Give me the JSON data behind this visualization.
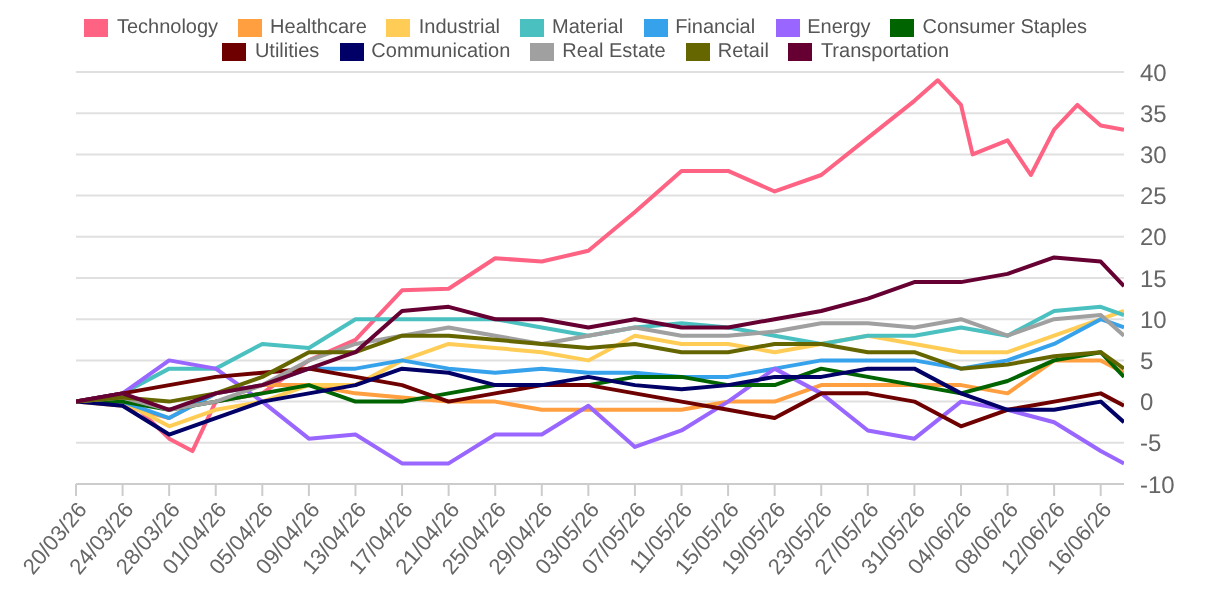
{
  "chart_data": {
    "type": "line",
    "x": [
      "--03-20",
      "--03-24",
      "--03-28",
      "--04-01",
      "--04-05",
      "--04-09",
      "--04-13",
      "--04-17",
      "--04-21",
      "--04-25",
      "--04-29",
      "--05-03",
      "--05-07",
      "--05-11",
      "--05-15",
      "--05-19",
      "--05-23",
      "--05-27",
      "--05-31",
      "--06-04",
      "--06-08",
      "--06-12",
      "--06-16",
      "--06-18"
    ],
    "series": [
      {
        "name": "Technology",
        "color": "#ff6384",
        "x": [
          "--03-20",
          "--03-24",
          "--03-28",
          "--03-30",
          "--04-01",
          "--04-05",
          "--04-09",
          "--04-13",
          "--04-17",
          "--04-21",
          "--04-25",
          "--04-29",
          "--05-03",
          "--05-07",
          "--05-11",
          "--05-15",
          "--05-19",
          "--05-23",
          "--05-27",
          "--05-31",
          "--06-02",
          "--06-04",
          "--06-05",
          "--06-08",
          "--06-10",
          "--06-12",
          "--06-14",
          "--06-16",
          "--06-18"
        ],
        "values": [
          0,
          1,
          -4.5,
          -6,
          0,
          1,
          5,
          7.5,
          13.5,
          13.7,
          17.4,
          17,
          18.3,
          23,
          28,
          28,
          25.5,
          27.5,
          32,
          36.5,
          39,
          36,
          30,
          31.7,
          27.5,
          33,
          36,
          33.5,
          33
        ]
      },
      {
        "name": "Healthcare",
        "color": "#ff9f40",
        "values": [
          0,
          -0.5,
          -2,
          1,
          2,
          2,
          1,
          0.5,
          0,
          0,
          -1,
          -1,
          -1,
          -1,
          0,
          0,
          2,
          2,
          2,
          2,
          1,
          5,
          5,
          3.5
        ]
      },
      {
        "name": "Industrial",
        "color": "#ffcd56",
        "values": [
          0,
          0,
          -3,
          -1,
          0,
          2,
          2,
          5,
          7,
          6.5,
          6,
          5,
          8,
          7,
          7,
          6,
          7,
          8,
          7,
          6,
          6,
          8,
          10,
          11
        ]
      },
      {
        "name": "Material",
        "color": "#4bc0c0",
        "values": [
          0,
          1,
          4,
          4,
          7,
          6.5,
          10,
          10,
          10,
          10,
          9,
          8,
          9,
          9.5,
          9,
          8,
          7,
          8,
          8,
          9,
          8,
          11,
          11.5,
          10.5
        ]
      },
      {
        "name": "Financial",
        "color": "#36a2eb",
        "values": [
          0,
          0,
          -2,
          1,
          2,
          4,
          4,
          5,
          4,
          3.5,
          4,
          3.5,
          3.5,
          3,
          3,
          4,
          5,
          5,
          5,
          4,
          5,
          7,
          10,
          9
        ]
      },
      {
        "name": "Energy",
        "color": "#9966ff",
        "values": [
          0,
          1,
          5,
          4,
          0,
          -4.5,
          -4,
          -7.5,
          -7.5,
          -4,
          -4,
          -0.5,
          -5.5,
          -3.5,
          0,
          4,
          1,
          -3.5,
          -4.5,
          0,
          -1,
          -2.5,
          -6,
          -7.5
        ]
      },
      {
        "name": "Consumer Staples",
        "color": "#006400",
        "values": [
          0,
          0,
          -1,
          0,
          1,
          2,
          0,
          0,
          1,
          2,
          2,
          2,
          3,
          3,
          2,
          2,
          4,
          3,
          2,
          1,
          2.5,
          5,
          6,
          3
        ]
      },
      {
        "name": "Utilities",
        "color": "#6e0000",
        "values": [
          0,
          1,
          2,
          3,
          3.5,
          4,
          3,
          2,
          0,
          1,
          2,
          2,
          1,
          0,
          -1,
          -2,
          1,
          1,
          0,
          -3,
          -1,
          0,
          1,
          -0.5
        ]
      },
      {
        "name": "Communication",
        "color": "#000066",
        "values": [
          0,
          -0.5,
          -4,
          -2,
          0,
          1,
          2,
          4,
          3.5,
          2,
          2,
          3,
          2,
          1.5,
          2,
          3,
          3,
          4,
          4,
          1,
          -1,
          -1,
          0,
          -2.5
        ]
      },
      {
        "name": "Real Estate",
        "color": "#a0a0a0",
        "values": [
          0,
          0.5,
          -1,
          0,
          2,
          5,
          7,
          8,
          9,
          8,
          7,
          8,
          9,
          8,
          8,
          8.5,
          9.5,
          9.5,
          9,
          10,
          8,
          10,
          10.5,
          8
        ]
      },
      {
        "name": "Retail",
        "color": "#666600",
        "values": [
          0,
          0.5,
          0,
          1,
          3,
          6,
          6,
          8,
          8,
          7.5,
          7,
          6.5,
          7,
          6,
          6,
          7,
          7,
          6,
          6,
          4,
          4.5,
          5.5,
          6,
          4
        ]
      },
      {
        "name": "Transportation",
        "color": "#660033",
        "values": [
          0,
          1,
          -1,
          1,
          2,
          4,
          6,
          11,
          11.5,
          10,
          10,
          9,
          10,
          9,
          9,
          10,
          11,
          12.5,
          14.5,
          14.5,
          15.5,
          17.5,
          17,
          14
        ]
      }
    ],
    "xlim": [
      "--03-20",
      "--06-18"
    ],
    "xticks": [
      {
        "value": "--03-20",
        "label": "20/03/26"
      },
      {
        "value": "--03-24",
        "label": "24/03/26"
      },
      {
        "value": "--03-28",
        "label": "28/03/26"
      },
      {
        "value": "--04-01",
        "label": "01/04/26"
      },
      {
        "value": "--04-05",
        "label": "05/04/26"
      },
      {
        "value": "--04-09",
        "label": "09/04/26"
      },
      {
        "value": "--04-13",
        "label": "13/04/26"
      },
      {
        "value": "--04-17",
        "label": "17/04/26"
      },
      {
        "value": "--04-21",
        "label": "21/04/26"
      },
      {
        "value": "--04-25",
        "label": "25/04/26"
      },
      {
        "value": "--04-29",
        "label": "29/04/26"
      },
      {
        "value": "--05-03",
        "label": "03/05/26"
      },
      {
        "value": "--05-07",
        "label": "07/05/26"
      },
      {
        "value": "--05-11",
        "label": "11/05/26"
      },
      {
        "value": "--05-15",
        "label": "15/05/26"
      },
      {
        "value": "--05-19",
        "label": "19/05/26"
      },
      {
        "value": "--05-23",
        "label": "23/05/26"
      },
      {
        "value": "--05-27",
        "label": "27/05/26"
      },
      {
        "value": "--05-31",
        "label": "31/05/26"
      },
      {
        "value": "--06-04",
        "label": "04/06/26"
      },
      {
        "value": "--06-08",
        "label": "08/06/26"
      },
      {
        "value": "--06-12",
        "label": "12/06/26"
      },
      {
        "value": "--06-16",
        "label": "16/06/26"
      }
    ],
    "ylim": [
      -10,
      40
    ],
    "yticks": [
      -10,
      -5,
      0,
      5,
      10,
      15,
      20,
      25,
      30,
      35,
      40
    ],
    "grid": "y",
    "legend": "top",
    "marker": "none",
    "line_style": "solid"
  }
}
